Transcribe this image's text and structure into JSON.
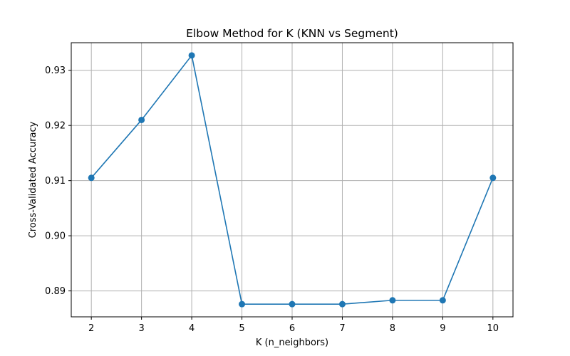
{
  "chart_data": {
    "type": "line",
    "title": "Elbow Method for K (KNN vs Segment)",
    "xlabel": "K (n_neighbors)",
    "ylabel": "Cross-Validated Accuracy",
    "x": [
      2,
      3,
      4,
      5,
      6,
      7,
      8,
      9,
      10
    ],
    "series": [
      {
        "values": [
          0.9105,
          0.921,
          0.9327,
          0.8876,
          0.8876,
          0.8876,
          0.8883,
          0.8883,
          0.9105
        ],
        "color": "#1f77b4",
        "marker": "circle"
      }
    ],
    "xticks": [
      "2",
      "3",
      "4",
      "5",
      "6",
      "7",
      "8",
      "9",
      "10"
    ],
    "yticks": [
      "0.89",
      "0.90",
      "0.91",
      "0.92",
      "0.93"
    ],
    "ytick_values": [
      0.89,
      0.9,
      0.91,
      0.92,
      0.93
    ],
    "xlim": [
      1.6,
      10.4
    ],
    "ylim": [
      0.8853,
      0.935
    ],
    "grid": true,
    "grid_color": "#b0b0b0"
  }
}
